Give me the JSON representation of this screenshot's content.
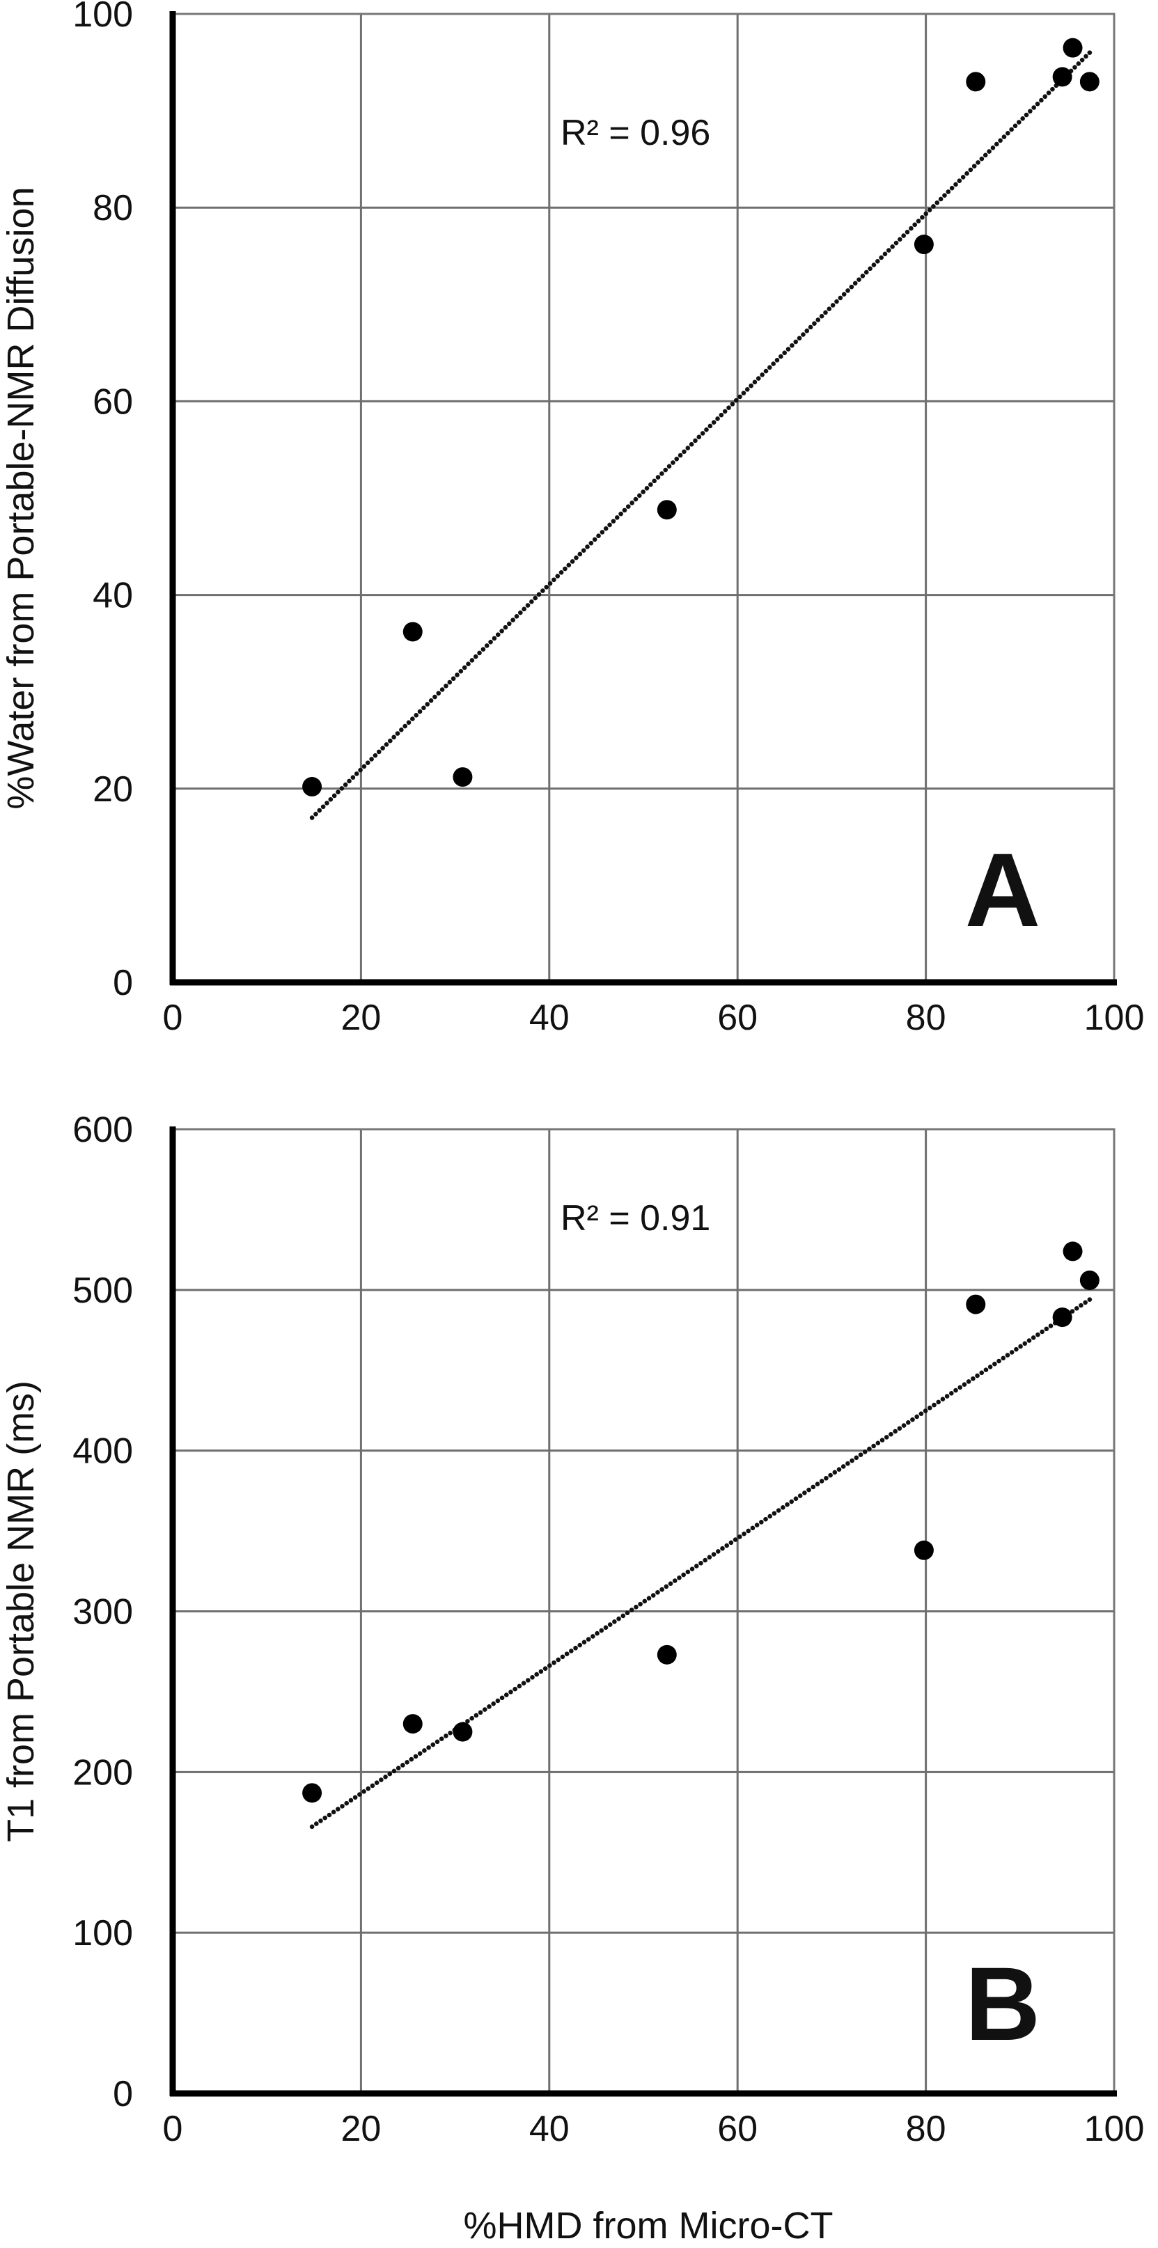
{
  "figure": {
    "shared_xlabel": "%HMD from Micro-CT"
  },
  "chart_data": [
    {
      "type": "scatter",
      "panel_letter": "A",
      "annotation": "R² = 0.96",
      "xlabel": "",
      "ylabel": "%Water from Portable-NMR Diffusion",
      "xlim": [
        0,
        100
      ],
      "ylim": [
        0,
        100
      ],
      "x_ticks": [
        "0",
        "20",
        "40",
        "60",
        "80",
        "100"
      ],
      "y_ticks": [
        "0",
        "20",
        "40",
        "60",
        "80",
        "100"
      ],
      "grid": true,
      "points": [
        {
          "x": 14.8,
          "y": 20.2
        },
        {
          "x": 25.5,
          "y": 36.2
        },
        {
          "x": 30.8,
          "y": 21.2
        },
        {
          "x": 52.5,
          "y": 48.8
        },
        {
          "x": 79.8,
          "y": 76.2
        },
        {
          "x": 85.3,
          "y": 93.0
        },
        {
          "x": 94.5,
          "y": 93.5
        },
        {
          "x": 95.6,
          "y": 96.5
        },
        {
          "x": 97.4,
          "y": 93.0
        }
      ],
      "trendline": {
        "x": [
          14.8,
          97.4
        ],
        "y": [
          17.0,
          96.0
        ],
        "style": "dotted"
      }
    },
    {
      "type": "scatter",
      "panel_letter": "B",
      "annotation": "R² = 0.91",
      "xlabel": "%HMD from Micro-CT",
      "ylabel": "T1 from Portable NMR (ms)",
      "xlim": [
        0,
        100
      ],
      "ylim": [
        0,
        600
      ],
      "x_ticks": [
        "0",
        "20",
        "40",
        "60",
        "80",
        "100"
      ],
      "y_ticks": [
        "0",
        "100",
        "200",
        "300",
        "400",
        "500",
        "600"
      ],
      "grid": true,
      "points": [
        {
          "x": 14.8,
          "y": 187
        },
        {
          "x": 25.5,
          "y": 230
        },
        {
          "x": 30.8,
          "y": 225
        },
        {
          "x": 52.5,
          "y": 273
        },
        {
          "x": 79.8,
          "y": 338
        },
        {
          "x": 85.3,
          "y": 491
        },
        {
          "x": 94.5,
          "y": 483
        },
        {
          "x": 95.6,
          "y": 524
        },
        {
          "x": 97.4,
          "y": 506
        }
      ],
      "trendline": {
        "x": [
          14.8,
          97.4
        ],
        "y": [
          166,
          494
        ],
        "style": "dotted"
      }
    }
  ]
}
